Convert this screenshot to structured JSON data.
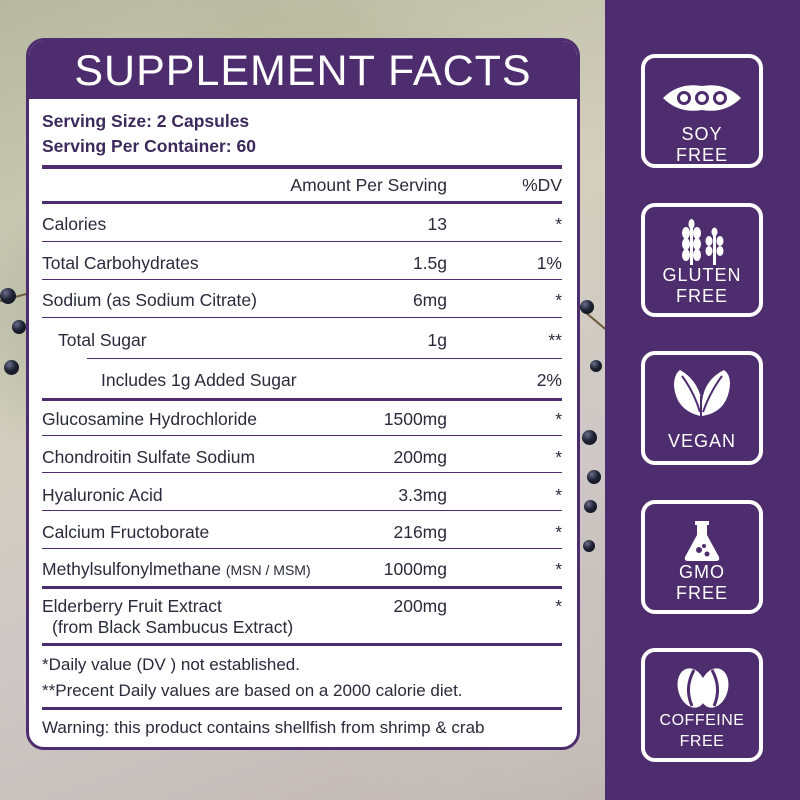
{
  "title": "SUPPLEMENT FACTS",
  "serving_size": "Serving Size: 2 Capsules",
  "servings_per_container": "Serving Per Container: 60",
  "header": {
    "amount": "Amount Per Serving",
    "dv": "%DV"
  },
  "rows": [
    {
      "name": "Calories",
      "amount": "13",
      "dv": "*"
    },
    {
      "name": "Total Carbohydrates",
      "amount": "1.5g",
      "dv": "1%"
    },
    {
      "name": "Sodium (as Sodium Citrate)",
      "amount": "6mg",
      "dv": "*"
    },
    {
      "name": "Total Sugar",
      "amount": "1g",
      "dv": "**"
    },
    {
      "name": "Includes 1g Added Sugar",
      "amount": "",
      "dv": "2%"
    },
    {
      "name": "Glucosamine Hydrochloride",
      "amount": "1500mg",
      "dv": "*"
    },
    {
      "name": "Chondroitin Sulfate Sodium",
      "amount": "200mg",
      "dv": "*"
    },
    {
      "name": "Hyaluronic Acid",
      "amount": "3.3mg",
      "dv": "*"
    },
    {
      "name": "Calcium Fructoborate",
      "amount": "216mg",
      "dv": "*"
    },
    {
      "name": "Methylsulfonylmethane",
      "name_note": "(MSN / MSM)",
      "amount": "1000mg",
      "dv": "*"
    },
    {
      "name": "Elderberry Fruit Extract",
      "name_line2": "(from Black Sambucus Extract)",
      "amount": "200mg",
      "dv": "*"
    }
  ],
  "footnotes": [
    "*Daily value (DV ) not established.",
    "**Precent Daily values are based  on a 2000 calorie diet."
  ],
  "warning": "Warning: this product contains shellfish from shrimp & crab",
  "badges": [
    {
      "icon": "soybean-icon",
      "line1": "SOY",
      "line2": "FREE"
    },
    {
      "icon": "wheat-icon",
      "line1": "GLUTEN",
      "line2": "FREE"
    },
    {
      "icon": "leaves-icon",
      "line1": "VEGAN",
      "line2": ""
    },
    {
      "icon": "flask-icon",
      "line1": "GMO",
      "line2": "FREE"
    },
    {
      "icon": "coffee-beans-icon",
      "line1": "COFFEINE",
      "line2": "FREE"
    }
  ],
  "colors": {
    "brand_purple": "#4e2d6e",
    "text_dark": "#2a2a3a"
  }
}
